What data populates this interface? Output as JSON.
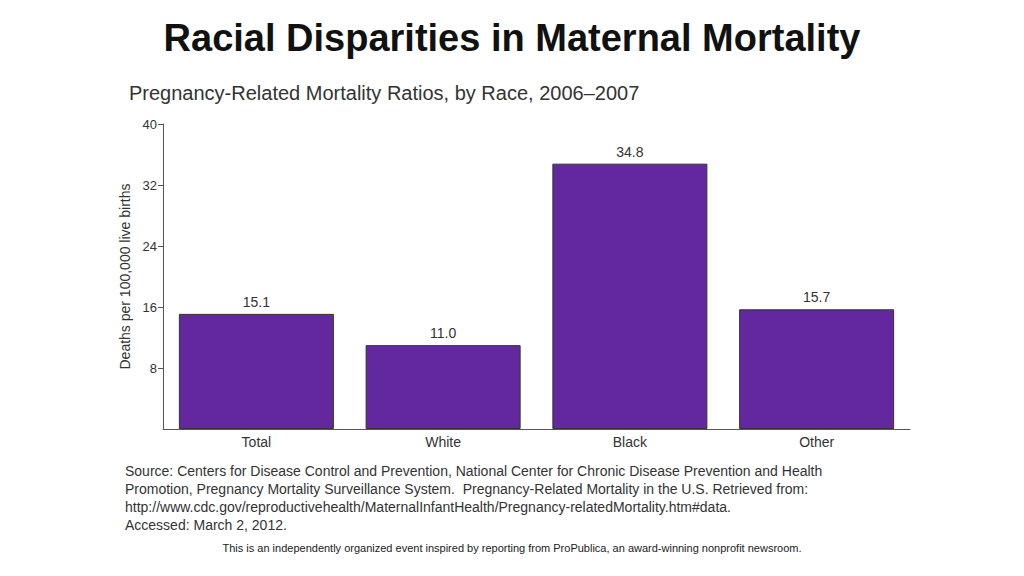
{
  "page": {
    "heading": "Racial Disparities in Maternal Mortality",
    "footer": "This is an independently organized event inspired by reporting from ProPublica, an award-winning nonprofit newsroom."
  },
  "chart_data": {
    "type": "bar",
    "title": "Pregnancy-Related Mortality Ratios, by Race, 2006–2007",
    "ylabel": "Deaths per 100,000 live births",
    "categories": [
      "Total",
      "White",
      "Black",
      "Other"
    ],
    "values": [
      15.1,
      11.0,
      34.8,
      15.7
    ],
    "value_labels": [
      "15.1",
      "11.0",
      "34.8",
      "15.7"
    ],
    "color": "#6328a0",
    "ylim": [
      0,
      40
    ],
    "yticks": [
      8,
      16,
      24,
      32,
      40
    ],
    "grid": false,
    "data_labels": true,
    "annotations": [
      "Source: Centers for Disease Control and Prevention, National Center for Chronic Disease Prevention and Health",
      "Promotion, Pregnancy Mortality Surveillance System.  Pregnancy-Related Mortality in the U.S. Retrieved from:",
      "http://www.cdc.gov/reproductivehealth/MaternalInfantHealth/Pregnancy-relatedMortality.htm#data.",
      "Accessed: March 2, 2012."
    ]
  }
}
